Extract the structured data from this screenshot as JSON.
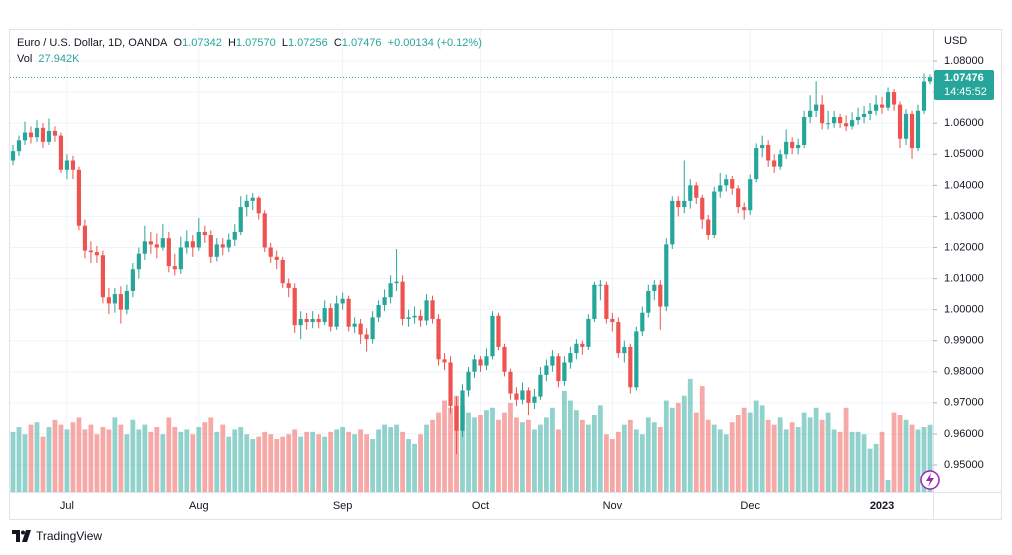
{
  "header": {
    "symbol": "Euro / U.S. Dollar, 1D, OANDA",
    "fields": [
      {
        "label": "O",
        "value": "1.07342"
      },
      {
        "label": "H",
        "value": "1.07570"
      },
      {
        "label": "L",
        "value": "1.07256"
      },
      {
        "label": "C",
        "value": "1.07476"
      }
    ],
    "change": "+0.00134 (+0.12%)",
    "vol_label": "Vol",
    "vol": "27.942K"
  },
  "currency": "USD",
  "last_price_label": "1.07476",
  "countdown": "14:45:52",
  "brand": "TradingView",
  "chart_data": {
    "type": "candlestick",
    "up_color": "#26a69a",
    "down_color": "#ef5350",
    "grid": true,
    "ylim": [
      0.9413,
      1.09
    ],
    "yticks": [
      {
        "value": 0.95,
        "label": "0.95000"
      },
      {
        "value": 0.96,
        "label": "0.96000"
      },
      {
        "value": 0.97,
        "label": "0.97000"
      },
      {
        "value": 0.98,
        "label": "0.98000"
      },
      {
        "value": 0.99,
        "label": "0.99000"
      },
      {
        "value": 1.0,
        "label": "1.00000"
      },
      {
        "value": 1.01,
        "label": "1.01000"
      },
      {
        "value": 1.02,
        "label": "1.02000"
      },
      {
        "value": 1.03,
        "label": "1.03000"
      },
      {
        "value": 1.04,
        "label": "1.04000"
      },
      {
        "value": 1.05,
        "label": "1.05000"
      },
      {
        "value": 1.06,
        "label": "1.06000"
      },
      {
        "value": 1.07,
        "label": "1.07000"
      },
      {
        "value": 1.08,
        "label": "1.08000"
      }
    ],
    "xlim": [
      -0.5,
      153.5
    ],
    "xticks": [
      {
        "value": 9,
        "label": "Jul"
      },
      {
        "value": 31,
        "label": "Aug"
      },
      {
        "value": 55,
        "label": "Sep"
      },
      {
        "value": 78,
        "label": "Oct"
      },
      {
        "value": 100,
        "label": "Nov"
      },
      {
        "value": 123,
        "label": "Dec"
      },
      {
        "value": 145,
        "label": "2023"
      }
    ],
    "ohlc": [
      [
        1.048,
        1.053,
        1.0465,
        1.051
      ],
      [
        1.051,
        1.056,
        1.0495,
        1.0545
      ],
      [
        1.0545,
        1.0605,
        1.053,
        1.057
      ],
      [
        1.057,
        1.059,
        1.0535,
        1.0555
      ],
      [
        1.0555,
        1.061,
        1.054,
        1.0585
      ],
      [
        1.0585,
        1.06,
        1.052,
        1.054
      ],
      [
        1.054,
        1.0615,
        1.053,
        1.0575
      ],
      [
        1.0575,
        1.059,
        1.054,
        1.056
      ],
      [
        1.056,
        1.057,
        1.044,
        1.045
      ],
      [
        1.045,
        1.05,
        1.042,
        1.048
      ],
      [
        1.048,
        1.0495,
        1.042,
        1.045
      ],
      [
        1.045,
        1.046,
        1.0255,
        1.027
      ],
      [
        1.027,
        1.029,
        1.0165,
        1.019
      ],
      [
        1.019,
        1.022,
        1.015,
        1.0185
      ],
      [
        1.0185,
        1.0205,
        1.015,
        1.0175
      ],
      [
        1.0175,
        1.019,
        1.002,
        1.004
      ],
      [
        1.004,
        1.007,
        0.9985,
        1.002
      ],
      [
        1.002,
        1.007,
        0.999,
        1.005
      ],
      [
        1.005,
        1.0075,
        0.9955,
        1.0
      ],
      [
        1.0,
        1.008,
        0.9985,
        1.006
      ],
      [
        1.006,
        1.015,
        1.004,
        1.013
      ],
      [
        1.013,
        1.02,
        1.01,
        1.018
      ],
      [
        1.018,
        1.027,
        1.016,
        1.022
      ],
      [
        1.022,
        1.025,
        1.018,
        1.021
      ],
      [
        1.021,
        1.0245,
        1.0165,
        1.02
      ],
      [
        1.02,
        1.0275,
        1.019,
        1.023
      ],
      [
        1.023,
        1.025,
        1.012,
        1.014
      ],
      [
        1.014,
        1.018,
        1.011,
        1.013
      ],
      [
        1.013,
        1.0235,
        1.0115,
        1.02
      ],
      [
        1.02,
        1.0255,
        1.018,
        1.022
      ],
      [
        1.022,
        1.024,
        1.017,
        1.02
      ],
      [
        1.02,
        1.0295,
        1.019,
        1.025
      ],
      [
        1.025,
        1.027,
        1.0215,
        1.024
      ],
      [
        1.024,
        1.0255,
        1.015,
        1.017
      ],
      [
        1.017,
        1.023,
        1.0155,
        1.021
      ],
      [
        1.021,
        1.023,
        1.0175,
        1.02
      ],
      [
        1.02,
        1.0245,
        1.0185,
        1.0225
      ],
      [
        1.0225,
        1.0275,
        1.0205,
        1.025
      ],
      [
        1.025,
        1.0365,
        1.024,
        1.033
      ],
      [
        1.033,
        1.037,
        1.03,
        1.035
      ],
      [
        1.035,
        1.0375,
        1.032,
        1.036
      ],
      [
        1.036,
        1.0365,
        1.029,
        1.031
      ],
      [
        1.031,
        1.032,
        1.0185,
        1.02
      ],
      [
        1.02,
        1.0215,
        1.015,
        1.017
      ],
      [
        1.017,
        1.019,
        1.013,
        1.016
      ],
      [
        1.016,
        1.017,
        1.007,
        1.0085
      ],
      [
        1.0085,
        1.01,
        1.004,
        1.007
      ],
      [
        1.007,
        1.0085,
        0.9925,
        0.995
      ],
      [
        0.995,
        0.9995,
        0.9905,
        0.997
      ],
      [
        0.997,
        0.999,
        0.9935,
        0.996
      ],
      [
        0.996,
        0.9995,
        0.994,
        0.997
      ],
      [
        0.997,
        0.9985,
        0.994,
        0.996
      ],
      [
        0.996,
        1.003,
        0.995,
        1.0005
      ],
      [
        1.0005,
        1.002,
        0.993,
        0.9945
      ],
      [
        0.9945,
        1.0045,
        0.9935,
        1.002
      ],
      [
        1.002,
        1.0055,
        1.0,
        1.0035
      ],
      [
        1.0035,
        1.0045,
        0.993,
        0.9945
      ],
      [
        0.9945,
        0.9975,
        0.9925,
        0.9955
      ],
      [
        0.9955,
        0.997,
        0.989,
        0.992
      ],
      [
        0.992,
        0.994,
        0.9865,
        0.9905
      ],
      [
        0.9905,
        0.9995,
        0.989,
        0.9975
      ],
      [
        0.9975,
        1.003,
        0.996,
        1.0015
      ],
      [
        1.0015,
        1.0065,
        0.9995,
        1.004
      ],
      [
        1.004,
        1.011,
        1.002,
        1.0085
      ],
      [
        1.0085,
        1.0195,
        1.006,
        1.009
      ],
      [
        1.009,
        1.011,
        0.995,
        0.997
      ],
      [
        0.997,
        1.0,
        0.9945,
        0.9975
      ],
      [
        0.9975,
        1.001,
        0.9955,
        0.998
      ],
      [
        0.998,
        1.0,
        0.9945,
        0.9965
      ],
      [
        0.9965,
        1.005,
        0.995,
        1.003
      ],
      [
        1.003,
        1.0045,
        0.9955,
        0.997
      ],
      [
        0.997,
        0.9985,
        0.982,
        0.984
      ],
      [
        0.984,
        0.986,
        0.9805,
        0.983
      ],
      [
        0.983,
        0.985,
        0.9665,
        0.969
      ],
      [
        0.969,
        0.972,
        0.9535,
        0.961
      ],
      [
        0.961,
        0.976,
        0.959,
        0.974
      ],
      [
        0.974,
        0.9815,
        0.972,
        0.98
      ],
      [
        0.98,
        0.9855,
        0.978,
        0.984
      ],
      [
        0.984,
        0.985,
        0.98,
        0.982
      ],
      [
        0.982,
        0.9875,
        0.9805,
        0.985
      ],
      [
        0.985,
        0.9995,
        0.984,
        0.998
      ],
      [
        0.998,
        0.999,
        0.987,
        0.988
      ],
      [
        0.988,
        0.989,
        0.9785,
        0.98
      ],
      [
        0.98,
        0.981,
        0.971,
        0.973
      ],
      [
        0.973,
        0.975,
        0.969,
        0.971
      ],
      [
        0.971,
        0.9765,
        0.9695,
        0.974
      ],
      [
        0.974,
        0.975,
        0.966,
        0.97
      ],
      [
        0.97,
        0.9745,
        0.968,
        0.972
      ],
      [
        0.972,
        0.9815,
        0.971,
        0.979
      ],
      [
        0.979,
        0.984,
        0.977,
        0.982
      ],
      [
        0.982,
        0.987,
        0.98,
        0.985
      ],
      [
        0.985,
        0.986,
        0.975,
        0.977
      ],
      [
        0.977,
        0.985,
        0.9755,
        0.983
      ],
      [
        0.983,
        0.988,
        0.981,
        0.986
      ],
      [
        0.986,
        0.9905,
        0.984,
        0.989
      ],
      [
        0.989,
        0.99,
        0.9855,
        0.988
      ],
      [
        0.988,
        0.9985,
        0.987,
        0.997
      ],
      [
        0.997,
        1.009,
        0.996,
        1.008
      ],
      [
        1.008,
        1.0095,
        1.003,
        1.008
      ],
      [
        1.008,
        1.009,
        0.9955,
        0.997
      ],
      [
        0.997,
        0.999,
        0.993,
        0.996
      ],
      [
        0.996,
        0.9975,
        0.9845,
        0.986
      ],
      [
        0.986,
        0.99,
        0.983,
        0.988
      ],
      [
        0.988,
        0.989,
        0.973,
        0.975
      ],
      [
        0.975,
        0.9945,
        0.974,
        0.993
      ],
      [
        0.993,
        1.001,
        0.9915,
        0.999
      ],
      [
        0.999,
        1.008,
        0.9975,
        1.006
      ],
      [
        1.006,
        1.0095,
        1.003,
        1.008
      ],
      [
        1.008,
        1.0095,
        0.9935,
        1.001
      ],
      [
        1.001,
        1.023,
        0.9995,
        1.021
      ],
      [
        1.021,
        1.0365,
        1.0195,
        1.035
      ],
      [
        1.035,
        1.0365,
        1.03,
        1.033
      ],
      [
        1.033,
        1.048,
        1.031,
        1.035
      ],
      [
        1.035,
        1.042,
        1.0325,
        1.04
      ],
      [
        1.04,
        1.041,
        1.034,
        1.036
      ],
      [
        1.036,
        1.037,
        1.026,
        1.029
      ],
      [
        1.029,
        1.0305,
        1.0225,
        1.024
      ],
      [
        1.024,
        1.0395,
        1.023,
        1.038
      ],
      [
        1.038,
        1.044,
        1.036,
        1.04
      ],
      [
        1.04,
        1.0435,
        1.038,
        1.042
      ],
      [
        1.042,
        1.043,
        1.037,
        1.039
      ],
      [
        1.039,
        1.04,
        1.031,
        1.033
      ],
      [
        1.033,
        1.0345,
        1.029,
        1.032
      ],
      [
        1.032,
        1.0435,
        1.0305,
        1.042
      ],
      [
        1.042,
        1.0535,
        1.041,
        1.052
      ],
      [
        1.052,
        1.056,
        1.049,
        1.053
      ],
      [
        1.053,
        1.0545,
        1.046,
        1.048
      ],
      [
        1.048,
        1.05,
        1.044,
        1.046
      ],
      [
        1.046,
        1.0515,
        1.045,
        1.05
      ],
      [
        1.05,
        1.058,
        1.0485,
        1.054
      ],
      [
        1.054,
        1.0555,
        1.05,
        1.052
      ],
      [
        1.052,
        1.055,
        1.05,
        1.053
      ],
      [
        1.053,
        1.064,
        1.052,
        1.062
      ],
      [
        1.062,
        1.069,
        1.06,
        1.064
      ],
      [
        1.064,
        1.0735,
        1.062,
        1.066
      ],
      [
        1.066,
        1.069,
        1.058,
        1.06
      ],
      [
        1.06,
        1.064,
        1.058,
        1.06
      ],
      [
        1.06,
        1.064,
        1.0585,
        1.062
      ],
      [
        1.062,
        1.063,
        1.0585,
        1.06
      ],
      [
        1.06,
        1.0625,
        1.0575,
        1.059
      ],
      [
        1.059,
        1.0635,
        1.058,
        1.061
      ],
      [
        1.061,
        1.065,
        1.0595,
        1.062
      ],
      [
        1.062,
        1.0655,
        1.06,
        1.063
      ],
      [
        1.063,
        1.0665,
        1.061,
        1.064
      ],
      [
        1.064,
        1.069,
        1.0625,
        1.066
      ],
      [
        1.066,
        1.0685,
        1.063,
        1.065
      ],
      [
        1.065,
        1.0715,
        1.064,
        1.07
      ],
      [
        1.07,
        1.071,
        1.064,
        1.066
      ],
      [
        1.066,
        1.067,
        1.052,
        1.055
      ],
      [
        1.055,
        1.0645,
        1.053,
        1.063
      ],
      [
        1.063,
        1.064,
        1.0485,
        1.052
      ],
      [
        1.052,
        1.066,
        1.051,
        1.064
      ],
      [
        1.064,
        1.076,
        1.063,
        1.0734
      ],
      [
        1.07342,
        1.0757,
        1.07256,
        1.07476
      ]
    ],
    "volume_lim": [
      0,
      192
    ],
    "volume": [
      25,
      27,
      24,
      28,
      29,
      23,
      27,
      30,
      28,
      26,
      29,
      31,
      26,
      28,
      24,
      27,
      26,
      31,
      28,
      24,
      30,
      26,
      28,
      25,
      27,
      24,
      31,
      27,
      25,
      26,
      24,
      27,
      29,
      31,
      25,
      28,
      23,
      26,
      27,
      24,
      22,
      23,
      25,
      24,
      22,
      23,
      24,
      26,
      23,
      25,
      25,
      24,
      23,
      25,
      26,
      27,
      25,
      24,
      26,
      24,
      22,
      26,
      28,
      27,
      28,
      25,
      22,
      20,
      24,
      28,
      30,
      33,
      38,
      35,
      40,
      36,
      33,
      31,
      32,
      34,
      35,
      30,
      33,
      37,
      31,
      29,
      30,
      26,
      28,
      31,
      35,
      26,
      42,
      38,
      34,
      30,
      28,
      32,
      36,
      24,
      22,
      25,
      28,
      30,
      26,
      24,
      31,
      29,
      27,
      38,
      35,
      37,
      40,
      47,
      33,
      44,
      30,
      28,
      26,
      24,
      29,
      32,
      35,
      33,
      38,
      36,
      30,
      28,
      31,
      26,
      29,
      27,
      33,
      31,
      35,
      30,
      33,
      26,
      25,
      35,
      25,
      25,
      24,
      18,
      20,
      25,
      5,
      33,
      32,
      30,
      28,
      26,
      27,
      27.942
    ]
  }
}
